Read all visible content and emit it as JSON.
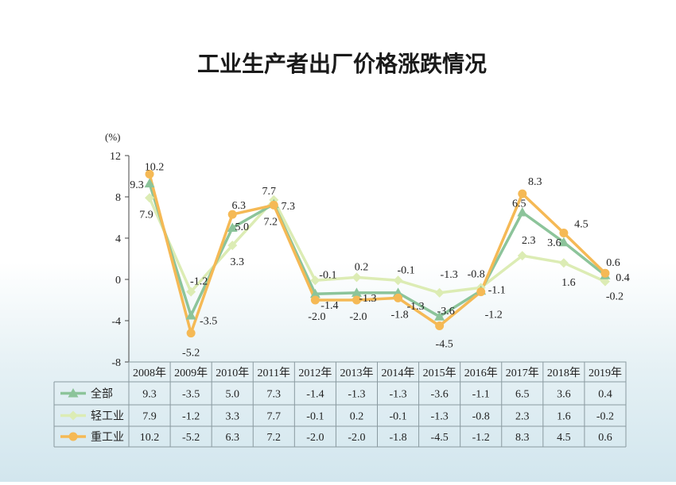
{
  "chart_data": {
    "type": "line",
    "title": "工业生产者出厂价格涨跌情况",
    "y_unit": "(%)",
    "ylim": [
      -8,
      12
    ],
    "yticks": [
      12,
      8,
      4,
      0,
      -4,
      -8
    ],
    "grid": false,
    "legend": "table-left",
    "categories": [
      "2008年",
      "2009年",
      "2010年",
      "2011年",
      "2012年",
      "2013年",
      "2014年",
      "2015年",
      "2016年",
      "2017年",
      "2018年",
      "2019年"
    ],
    "series": [
      {
        "name": "全部",
        "color": "#8cc49a",
        "marker": "triangle",
        "values": [
          9.3,
          -3.5,
          5.0,
          7.3,
          -1.4,
          -1.3,
          -1.3,
          -3.6,
          -1.1,
          6.5,
          3.6,
          0.4
        ]
      },
      {
        "name": "轻工业",
        "color": "#dcecb4",
        "marker": "diamond",
        "values": [
          7.9,
          -1.2,
          3.3,
          7.7,
          -0.1,
          0.2,
          -0.1,
          -1.3,
          -0.8,
          2.3,
          1.6,
          -0.2
        ]
      },
      {
        "name": "重工业",
        "color": "#f5b955",
        "marker": "circle",
        "values": [
          10.2,
          -5.2,
          6.3,
          7.2,
          -2.0,
          -2.0,
          -1.8,
          -4.5,
          -1.2,
          8.3,
          4.5,
          0.6
        ]
      }
    ],
    "table_rows": [
      [
        "9.3",
        "-3.5",
        "5.0",
        "7.3",
        "-1.4",
        "-1.3",
        "-1.3",
        "-3.6",
        "-1.1",
        "6.5",
        "3.6",
        "0.4"
      ],
      [
        "7.9",
        "-1.2",
        "3.3",
        "7.7",
        "-0.1",
        "0.2",
        "-0.1",
        "-1.3",
        "-0.8",
        "2.3",
        "1.6",
        "-0.2"
      ],
      [
        "10.2",
        "-5.2",
        "6.3",
        "7.2",
        "-2.0",
        "-2.0",
        "-1.8",
        "-4.5",
        "-1.2",
        "8.3",
        "4.5",
        "0.6"
      ]
    ],
    "point_labels": [
      [
        "9.3",
        "-3.5",
        "5.0",
        "7.3",
        "-1.4",
        "-1.3",
        "-1.3",
        "-3.6",
        "-1.1",
        "6.5",
        "3.6",
        "0.4"
      ],
      [
        "7.9",
        "-1.2",
        "3.3",
        "7.7",
        "-0.1",
        "0.2",
        "-0.1",
        "-1.3",
        "-0.8",
        "2.3",
        "1.6",
        "-0.2"
      ],
      [
        "10.2",
        "-5.2",
        "6.3",
        "7.2",
        "-2.0",
        "-2.0",
        "-1.8",
        "-4.5",
        "-1.2",
        "8.3",
        "4.5",
        "0.6"
      ]
    ]
  }
}
